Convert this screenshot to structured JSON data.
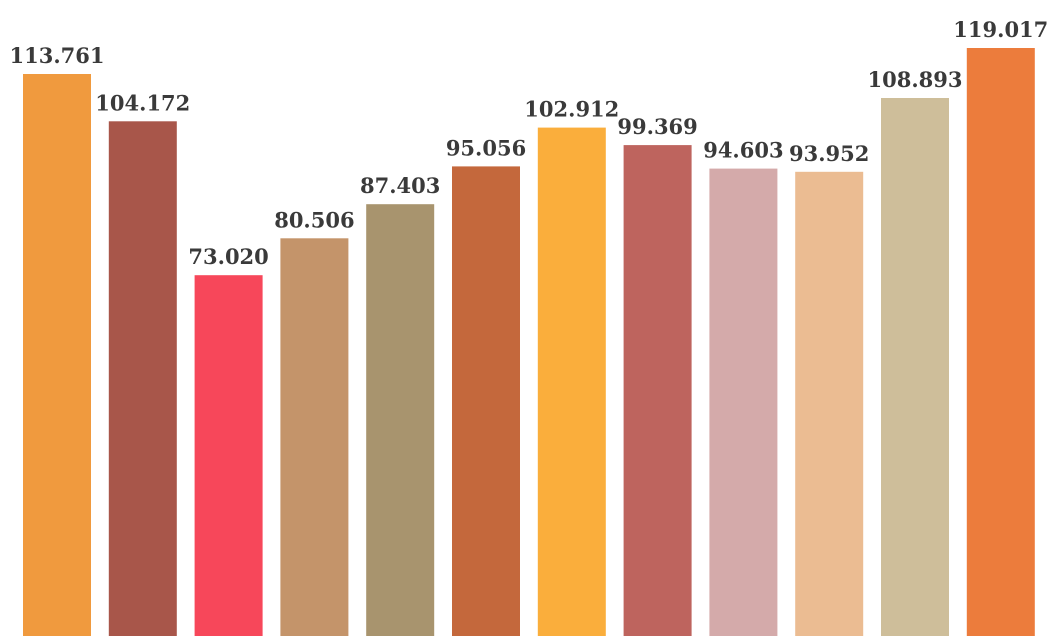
{
  "chart_data": {
    "type": "bar",
    "values": [
      113.761,
      104.172,
      73.02,
      80.506,
      87.403,
      95.056,
      102.912,
      99.369,
      94.603,
      93.952,
      108.893,
      119.017
    ],
    "data_labels": [
      "113.761",
      "104.172",
      "73.020",
      "80.506",
      "87.403",
      "95.056",
      "102.912",
      "99.369",
      "94.603",
      "93.952",
      "108.893",
      "119.017"
    ],
    "colors": [
      "#F09A3E",
      "#A8564A",
      "#F7475A",
      "#C4946A",
      "#A8946E",
      "#C4683C",
      "#FAAE3C",
      "#BE645E",
      "#D4AAAA",
      "#EBBC92",
      "#CEBE9A",
      "#EC7C3C"
    ],
    "ylim": [
      0,
      119.017
    ],
    "grid": false,
    "legend": "none"
  }
}
